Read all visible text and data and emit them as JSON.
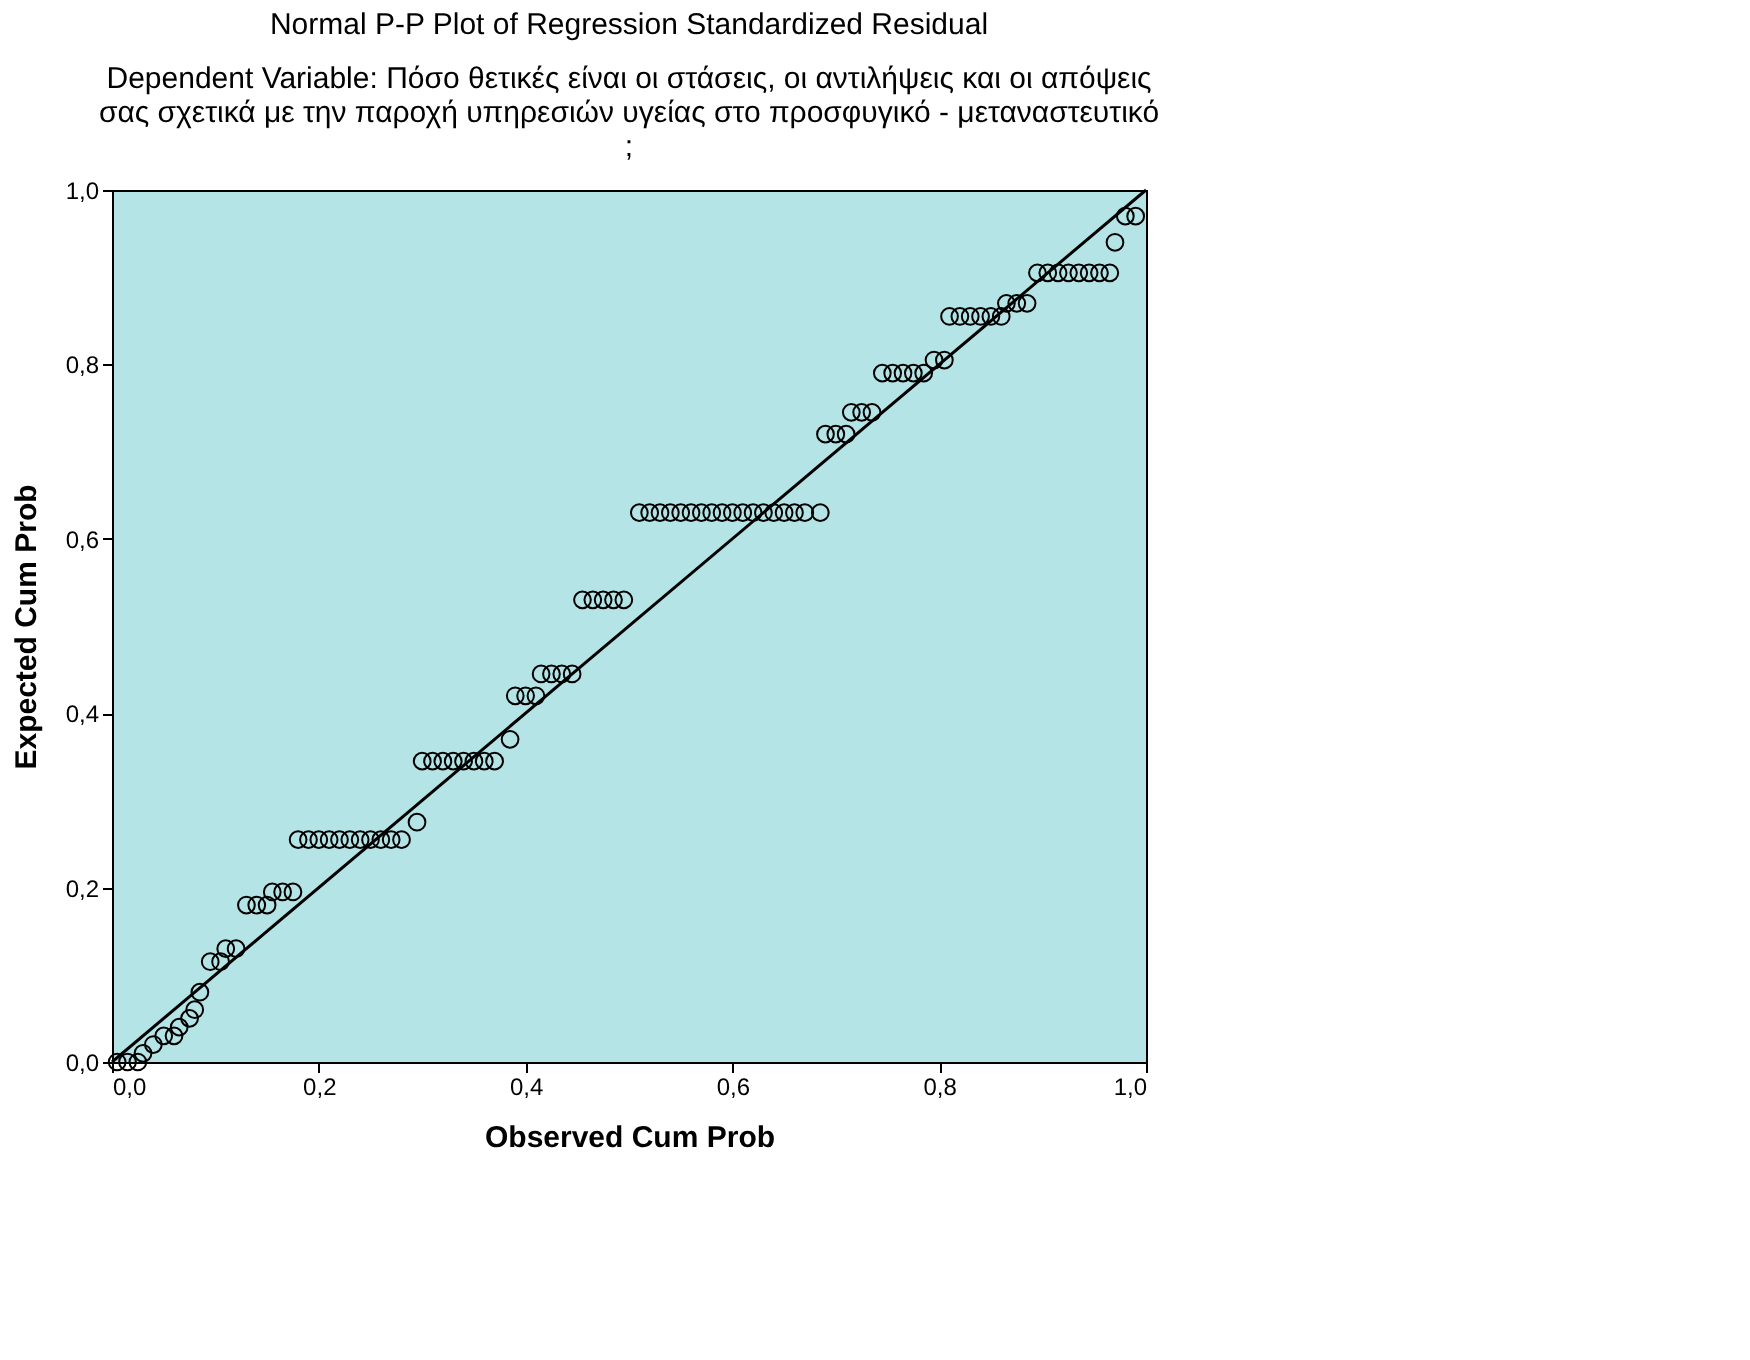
{
  "chart_data": {
    "type": "scatter",
    "title": "Normal P-P Plot of Regression Standardized Residual",
    "subtitle": "Dependent Variable: Πόσο θετικές είναι οι στάσεις, οι αντιλήψεις και οι απόψεις\nσας σχετικά με την παροχή υπηρεσιών υγείας στο προσφυγικό - μεταναστευτικό\n;",
    "xlabel": "Observed Cum Prob",
    "ylabel": "Expected Cum Prob",
    "xlim": [
      0,
      1
    ],
    "ylim": [
      0,
      1
    ],
    "xticks": [
      {
        "value": 0,
        "label": "0,0"
      },
      {
        "value": 0.2,
        "label": "0,2"
      },
      {
        "value": 0.4,
        "label": "0,4"
      },
      {
        "value": 0.6,
        "label": "0,6"
      },
      {
        "value": 0.8,
        "label": "0,8"
      },
      {
        "value": 1,
        "label": "1,0"
      }
    ],
    "yticks": [
      {
        "value": 0,
        "label": "0,0"
      },
      {
        "value": 0.2,
        "label": "0,2"
      },
      {
        "value": 0.4,
        "label": "0,4"
      },
      {
        "value": 0.6,
        "label": "0,6"
      },
      {
        "value": 0.8,
        "label": "0,8"
      },
      {
        "value": 1,
        "label": "1,0"
      }
    ],
    "grid": false,
    "marker": "circle",
    "series": [
      {
        "color": "#000000",
        "x": [
          0.005,
          0.015,
          0.025,
          0.03,
          0.04,
          0.05,
          0.06,
          0.065,
          0.075,
          0.08,
          0.085,
          0.095,
          0.105,
          0.11,
          0.12,
          0.13,
          0.14,
          0.15,
          0.155,
          0.165,
          0.175,
          0.18,
          0.19,
          0.2,
          0.21,
          0.22,
          0.23,
          0.24,
          0.25,
          0.26,
          0.27,
          0.28,
          0.295,
          0.3,
          0.31,
          0.32,
          0.33,
          0.34,
          0.35,
          0.36,
          0.37,
          0.385,
          0.39,
          0.4,
          0.41,
          0.415,
          0.425,
          0.435,
          0.445,
          0.455,
          0.465,
          0.475,
          0.485,
          0.495,
          0.51,
          0.52,
          0.53,
          0.54,
          0.55,
          0.56,
          0.57,
          0.58,
          0.59,
          0.6,
          0.61,
          0.62,
          0.63,
          0.64,
          0.65,
          0.66,
          0.67,
          0.685,
          0.69,
          0.7,
          0.71,
          0.715,
          0.725,
          0.735,
          0.745,
          0.755,
          0.765,
          0.775,
          0.785,
          0.795,
          0.805,
          0.81,
          0.82,
          0.83,
          0.84,
          0.85,
          0.86,
          0.865,
          0.875,
          0.885,
          0.895,
          0.905,
          0.915,
          0.925,
          0.935,
          0.945,
          0.955,
          0.965,
          0.97,
          0.98,
          0.99
        ],
        "values": [
          0.0,
          0.0,
          0.0,
          0.01,
          0.02,
          0.03,
          0.03,
          0.04,
          0.05,
          0.06,
          0.08,
          0.115,
          0.115,
          0.13,
          0.13,
          0.18,
          0.18,
          0.18,
          0.195,
          0.195,
          0.195,
          0.255,
          0.255,
          0.255,
          0.255,
          0.255,
          0.255,
          0.255,
          0.255,
          0.255,
          0.255,
          0.255,
          0.275,
          0.345,
          0.345,
          0.345,
          0.345,
          0.345,
          0.345,
          0.345,
          0.345,
          0.37,
          0.42,
          0.42,
          0.42,
          0.445,
          0.445,
          0.445,
          0.445,
          0.53,
          0.53,
          0.53,
          0.53,
          0.53,
          0.63,
          0.63,
          0.63,
          0.63,
          0.63,
          0.63,
          0.63,
          0.63,
          0.63,
          0.63,
          0.63,
          0.63,
          0.63,
          0.63,
          0.63,
          0.63,
          0.63,
          0.63,
          0.72,
          0.72,
          0.72,
          0.745,
          0.745,
          0.745,
          0.79,
          0.79,
          0.79,
          0.79,
          0.79,
          0.805,
          0.805,
          0.855,
          0.855,
          0.855,
          0.855,
          0.855,
          0.855,
          0.87,
          0.87,
          0.87,
          0.905,
          0.905,
          0.905,
          0.905,
          0.905,
          0.905,
          0.905,
          0.905,
          0.94,
          0.97,
          0.97
        ]
      },
      {
        "type": "line",
        "marker": "none",
        "color": "#000000",
        "x": [
          0,
          1
        ],
        "values": [
          0,
          1
        ]
      }
    ]
  }
}
